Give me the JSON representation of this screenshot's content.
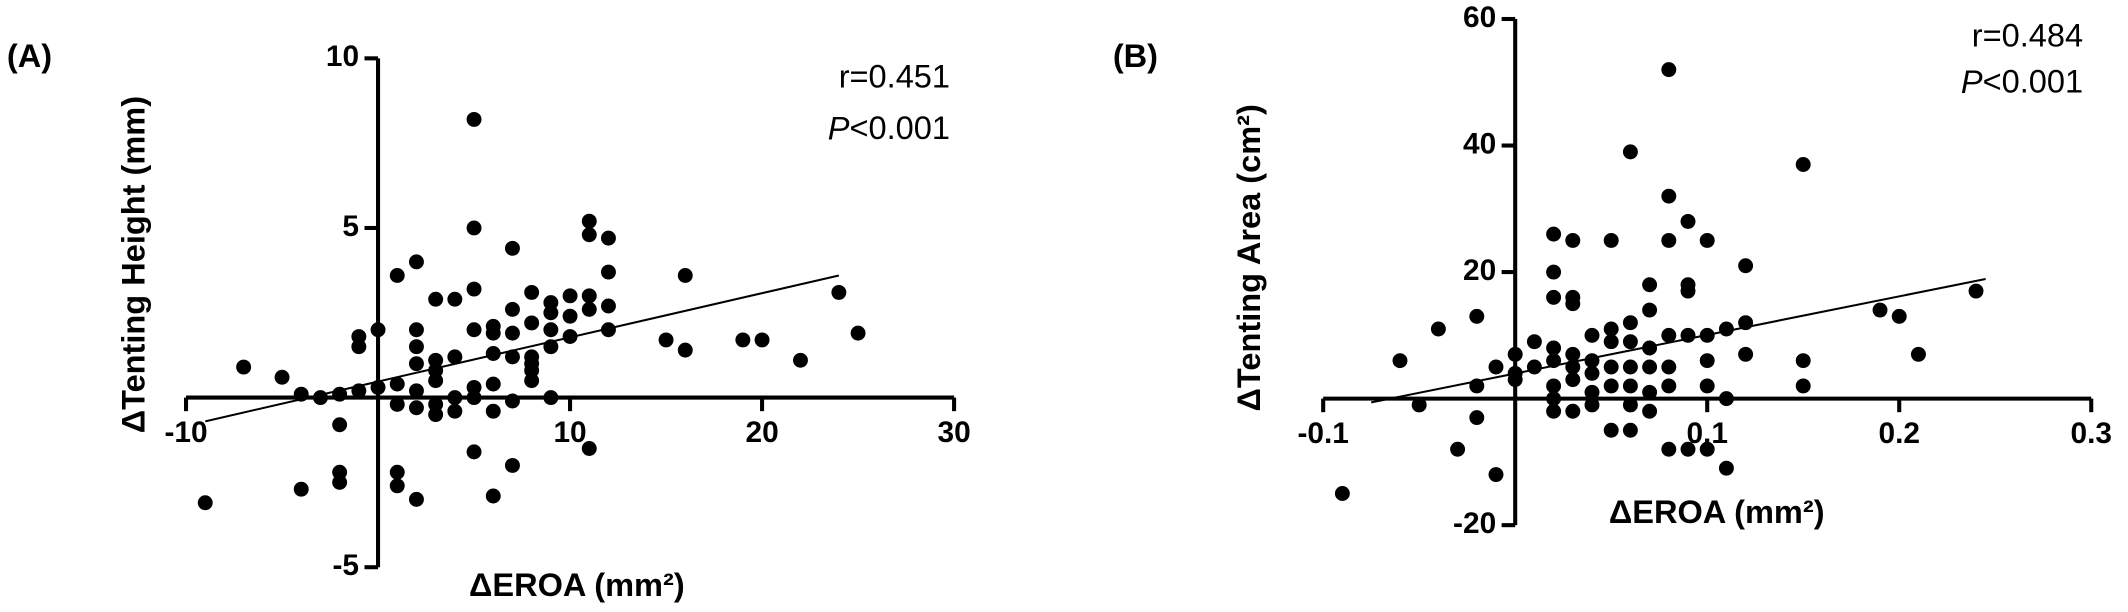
{
  "chart_data": [
    {
      "type": "scatter",
      "panel_label": "(A)",
      "x_label": "ΔEROA (mm²)",
      "y_label": "ΔTenting Height (mm)",
      "annotations": [
        "r=0.451",
        "P<0.001"
      ],
      "color": "#000000",
      "xlim": [
        -10,
        30
      ],
      "ylim": [
        -5,
        10
      ],
      "xticks": [
        -10,
        10,
        20,
        30
      ],
      "yticks": [
        -5,
        5,
        10
      ],
      "x": [
        -9,
        -7,
        -5,
        -4,
        -4,
        -3,
        -2,
        -2,
        -2,
        -2,
        -1,
        -1,
        -1,
        0,
        0,
        1,
        1,
        1,
        1,
        1,
        2,
        2,
        2,
        2,
        2,
        2,
        2,
        3,
        3,
        3,
        3,
        3,
        3,
        4,
        4,
        4,
        4,
        5,
        5,
        5,
        5,
        5,
        5,
        5,
        6,
        6,
        6,
        6,
        6,
        6,
        7,
        7,
        7,
        7,
        7,
        7,
        8,
        8,
        8,
        8,
        8,
        8,
        9,
        9,
        9,
        9,
        9,
        10,
        10,
        10,
        11,
        11,
        11,
        11,
        11,
        12,
        12,
        12,
        12,
        15,
        16,
        16,
        19,
        20,
        22,
        24,
        25
      ],
      "y": [
        -3.1,
        0.9,
        0.6,
        0.1,
        -2.7,
        0,
        -0.8,
        -2.2,
        -2.5,
        0.1,
        0.2,
        1.5,
        1.8,
        2,
        0.3,
        -2.2,
        -2.6,
        3.6,
        0.4,
        -0.2,
        1.0,
        1.5,
        2.0,
        4.0,
        -3.0,
        -0.3,
        0.2,
        1.1,
        0.8,
        2.9,
        -0.2,
        -0.5,
        0.5,
        1.2,
        2.9,
        0,
        -0.4,
        8.2,
        5.0,
        3.2,
        2.0,
        -1.6,
        0.3,
        0,
        -2.9,
        1.3,
        1.9,
        2.1,
        0.4,
        -0.4,
        4.4,
        2.6,
        1.9,
        -2.0,
        -0.1,
        1.2,
        0.5,
        0.8,
        1.0,
        1.2,
        3.1,
        2.2,
        2.5,
        2.0,
        2.8,
        1.5,
        0,
        3.0,
        1.8,
        2.4,
        5.2,
        4.8,
        3.0,
        2.6,
        -1.5,
        4.7,
        3.7,
        2.7,
        2.0,
        1.7,
        3.6,
        1.4,
        1.7,
        1.7,
        1.1,
        3.1,
        1.9
      ],
      "trend": {
        "x": [
          -9,
          24
        ],
        "y": [
          -0.7,
          3.6
        ]
      }
    },
    {
      "type": "scatter",
      "panel_label": "(B)",
      "x_label": "ΔEROA (mm²)",
      "y_label": "ΔTenting Area (cm²)",
      "annotations": [
        "r=0.484",
        "P<0.001"
      ],
      "color": "#000000",
      "xlim": [
        -0.1,
        0.3
      ],
      "ylim": [
        -20,
        60
      ],
      "xticks": [
        -0.1,
        0.1,
        0.2,
        0.3
      ],
      "yticks": [
        -20,
        20,
        40,
        60
      ],
      "x": [
        -0.09,
        -0.06,
        -0.05,
        -0.04,
        -0.03,
        -0.02,
        -0.02,
        -0.02,
        -0.01,
        -0.01,
        0,
        0,
        0,
        0.01,
        0.01,
        0.02,
        0.02,
        0.02,
        0.02,
        0.02,
        0.02,
        0.02,
        0.02,
        0.03,
        0.03,
        0.03,
        0.03,
        0.03,
        0.03,
        0.03,
        0.04,
        0.04,
        0.04,
        0.04,
        0.04,
        0.05,
        0.05,
        0.05,
        0.05,
        0.05,
        0.05,
        0.06,
        0.06,
        0.06,
        0.06,
        0.06,
        0.06,
        0.06,
        0.07,
        0.07,
        0.07,
        0.07,
        0.07,
        0.07,
        0.08,
        0.08,
        0.08,
        0.08,
        0.08,
        0.08,
        0.08,
        0.09,
        0.09,
        0.09,
        0.09,
        0.09,
        0.1,
        0.1,
        0.1,
        0.1,
        0.1,
        0.11,
        0.11,
        0.11,
        0.12,
        0.12,
        0.12,
        0.15,
        0.15,
        0.15,
        0.19,
        0.2,
        0.21,
        0.24
      ],
      "y": [
        -15,
        6,
        -1,
        11,
        -8,
        13,
        2,
        -3,
        -12,
        5,
        7,
        4,
        3,
        9,
        5,
        26,
        20,
        16,
        8,
        6,
        2,
        0,
        -2,
        25,
        16,
        15,
        7,
        5,
        3,
        -2,
        10,
        6,
        4,
        1,
        -1,
        25,
        11,
        9,
        5,
        2,
        -5,
        39,
        12,
        9,
        5,
        2,
        -1,
        -5,
        18,
        14,
        8,
        5,
        1,
        -2,
        52,
        32,
        25,
        10,
        5,
        2,
        -8,
        28,
        18,
        17,
        10,
        -8,
        25,
        10,
        6,
        2,
        -8,
        11,
        0,
        -11,
        21,
        12,
        7,
        37,
        6,
        2,
        14,
        13,
        7,
        17
      ],
      "trend": {
        "x": [
          -0.075,
          0.245
        ],
        "y": [
          -0.6,
          18.9
        ]
      }
    }
  ]
}
